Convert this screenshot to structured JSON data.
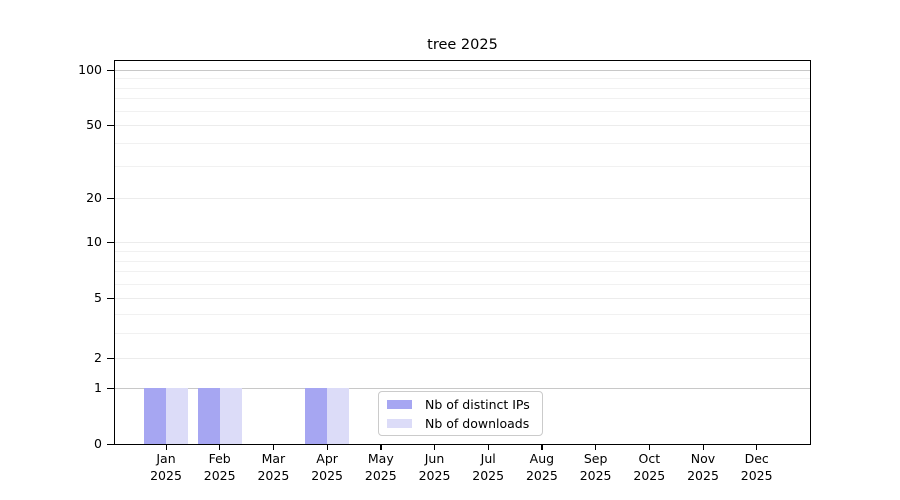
{
  "chart_data": {
    "type": "bar",
    "title": "tree 2025",
    "categories": [
      "Jan",
      "Feb",
      "Mar",
      "Apr",
      "May",
      "Jun",
      "Jul",
      "Aug",
      "Sep",
      "Oct",
      "Nov",
      "Dec"
    ],
    "x_year": "2025",
    "series": [
      {
        "name": "Nb of distinct IPs",
        "color": "#a6a6f2",
        "values": [
          1,
          1,
          0,
          1,
          0,
          0,
          0,
          0,
          0,
          0,
          0,
          0
        ]
      },
      {
        "name": "Nb of downloads",
        "color": "#dcdcf8",
        "values": [
          1,
          1,
          0,
          1,
          0,
          0,
          0,
          0,
          0,
          0,
          0,
          0
        ]
      }
    ],
    "y_ticks": [
      0,
      1,
      2,
      5,
      10,
      20,
      50,
      100
    ],
    "y_minor_gridlines": [
      3,
      4,
      6,
      7,
      8,
      9,
      30,
      40,
      60,
      70,
      80,
      90
    ],
    "yscale": "log1p",
    "ylim": [
      0,
      105
    ],
    "grid": true,
    "legend_position": "bottom-center"
  },
  "colors": {
    "background": "#ffffff",
    "axis": "#000000",
    "grid_major": "#c8c8c8",
    "grid_tick": "#ececec",
    "grid_minor": "#f1f1f1",
    "legend_border": "#cbcbcb"
  }
}
